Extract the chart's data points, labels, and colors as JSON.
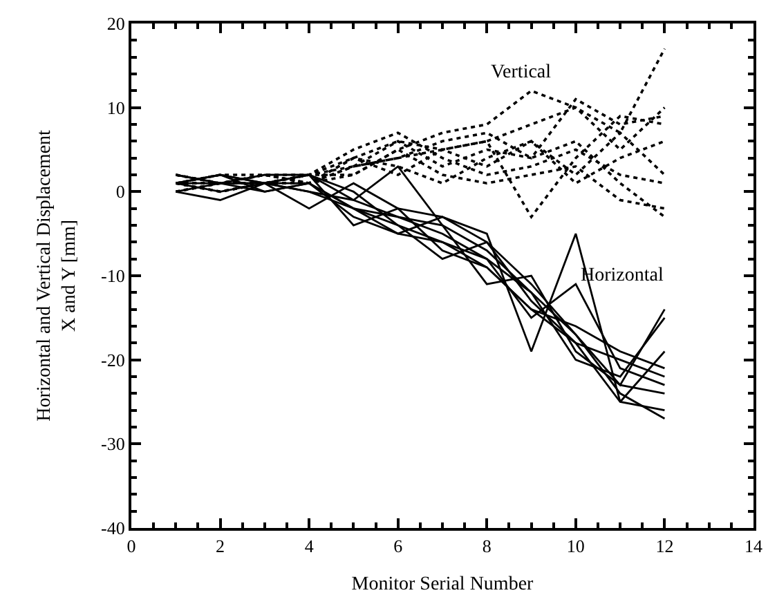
{
  "chart_data": {
    "type": "line",
    "xlabel": "Monitor Serial Number",
    "ylabel": "Horizontal and Vertical Displacement\nX and Y [mm]",
    "x": [
      1,
      2,
      3,
      4,
      5,
      6,
      7,
      8,
      9,
      10,
      11,
      12
    ],
    "xlim": [
      0,
      14
    ],
    "xticks": [
      0,
      2,
      4,
      6,
      8,
      10,
      12,
      14
    ],
    "ylim": [
      -40,
      20
    ],
    "yticks": [
      -40,
      -30,
      -20,
      -10,
      0,
      10,
      20
    ],
    "marker": "none",
    "annotations": [
      "Vertical",
      "Horizontal"
    ],
    "series": [
      {
        "color": "#000000",
        "line_style": "dotted",
        "values": [
          1,
          1,
          2,
          2,
          3,
          4,
          5,
          6,
          8,
          10,
          7,
          17
        ]
      },
      {
        "color": "#000000",
        "line_style": "dotted",
        "values": [
          0,
          1,
          1,
          2,
          2,
          5,
          7,
          8,
          12,
          10,
          5,
          10
        ]
      },
      {
        "color": "#000000",
        "line_style": "dotted",
        "values": [
          1,
          0,
          1,
          1,
          3,
          6,
          3,
          5,
          4,
          11,
          8,
          9
        ]
      },
      {
        "color": "#000000",
        "line_style": "dotted",
        "values": [
          2,
          1,
          1,
          2,
          4,
          6,
          5,
          6,
          -3,
          4,
          9,
          8
        ]
      },
      {
        "color": "#000000",
        "line_style": "dotted",
        "values": [
          1,
          2,
          2,
          1,
          4,
          3,
          1,
          4,
          6,
          1,
          4,
          6
        ]
      },
      {
        "color": "#000000",
        "line_style": "dotted",
        "values": [
          0,
          1,
          1,
          2,
          5,
          7,
          4,
          2,
          3,
          5,
          2,
          1
        ]
      },
      {
        "color": "#000000",
        "line_style": "dotted",
        "values": [
          1,
          1,
          2,
          1,
          2,
          5,
          2,
          1,
          2,
          3,
          -1,
          -2
        ]
      },
      {
        "color": "#000000",
        "line_style": "dotted",
        "values": [
          1,
          0,
          1,
          1,
          4,
          2,
          5,
          3,
          6,
          2,
          7,
          2
        ]
      },
      {
        "color": "#000000",
        "line_style": "dotted",
        "values": [
          2,
          1,
          2,
          1,
          3,
          4,
          6,
          7,
          4,
          6,
          1,
          -3
        ]
      },
      {
        "color": "#000000",
        "line_style": "solid",
        "values": [
          1,
          2,
          0,
          1,
          -2,
          -3,
          -5,
          -8,
          -12,
          -17,
          -24,
          -27
        ]
      },
      {
        "color": "#000000",
        "line_style": "solid",
        "values": [
          0,
          1,
          1,
          2,
          0,
          -4,
          -6,
          -9,
          -14,
          -18,
          -25,
          -26
        ]
      },
      {
        "color": "#000000",
        "line_style": "solid",
        "values": [
          1,
          0,
          1,
          0,
          -1,
          3,
          -4,
          -7,
          -12,
          -20,
          -22,
          -15
        ]
      },
      {
        "color": "#000000",
        "line_style": "solid",
        "values": [
          2,
          1,
          2,
          2,
          -4,
          -2,
          -3,
          -5,
          -19,
          -5,
          -25,
          -19
        ]
      },
      {
        "color": "#000000",
        "line_style": "solid",
        "values": [
          1,
          2,
          1,
          1,
          -3,
          -5,
          -6,
          -8,
          -15,
          -11,
          -21,
          -23
        ]
      },
      {
        "color": "#000000",
        "line_style": "solid",
        "values": [
          0,
          -1,
          1,
          2,
          -1,
          -3,
          -4,
          -11,
          -10,
          -19,
          -23,
          -24
        ]
      },
      {
        "color": "#000000",
        "line_style": "solid",
        "values": [
          1,
          1,
          0,
          1,
          -2,
          -4,
          -8,
          -6,
          -13,
          -18,
          -20,
          -22
        ]
      },
      {
        "color": "#000000",
        "line_style": "solid",
        "values": [
          2,
          1,
          1,
          -2,
          1,
          -2,
          -7,
          -9,
          -14,
          -16,
          -19,
          -21
        ]
      },
      {
        "color": "#000000",
        "line_style": "solid",
        "values": [
          1,
          2,
          1,
          0,
          -2,
          -5,
          -3,
          -6,
          -11,
          -17,
          -23,
          -14
        ]
      }
    ]
  }
}
